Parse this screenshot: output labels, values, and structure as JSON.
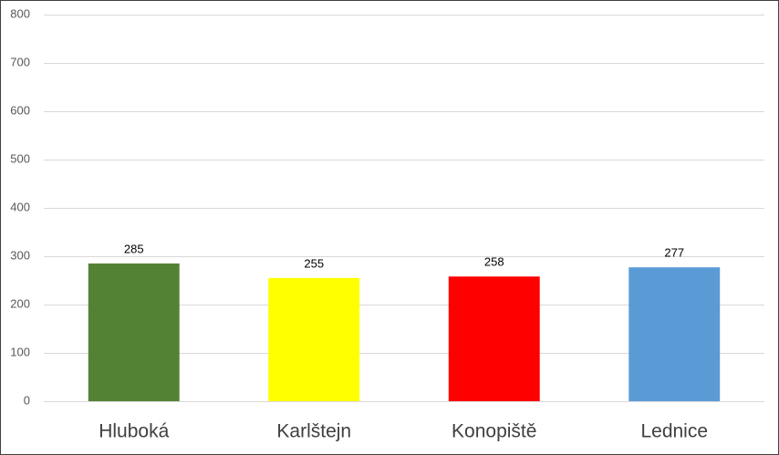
{
  "chart_data": {
    "type": "bar",
    "categories": [
      "Hluboká",
      "Karlštejn",
      "Konopiště",
      "Lednice"
    ],
    "values": [
      285,
      255,
      258,
      277
    ],
    "colors": [
      "#548235",
      "#ffff00",
      "#ff0000",
      "#5b9bd5"
    ],
    "ylim": [
      0,
      800
    ],
    "yticks": [
      0,
      100,
      200,
      300,
      400,
      500,
      600,
      700,
      800
    ],
    "grid": true
  }
}
